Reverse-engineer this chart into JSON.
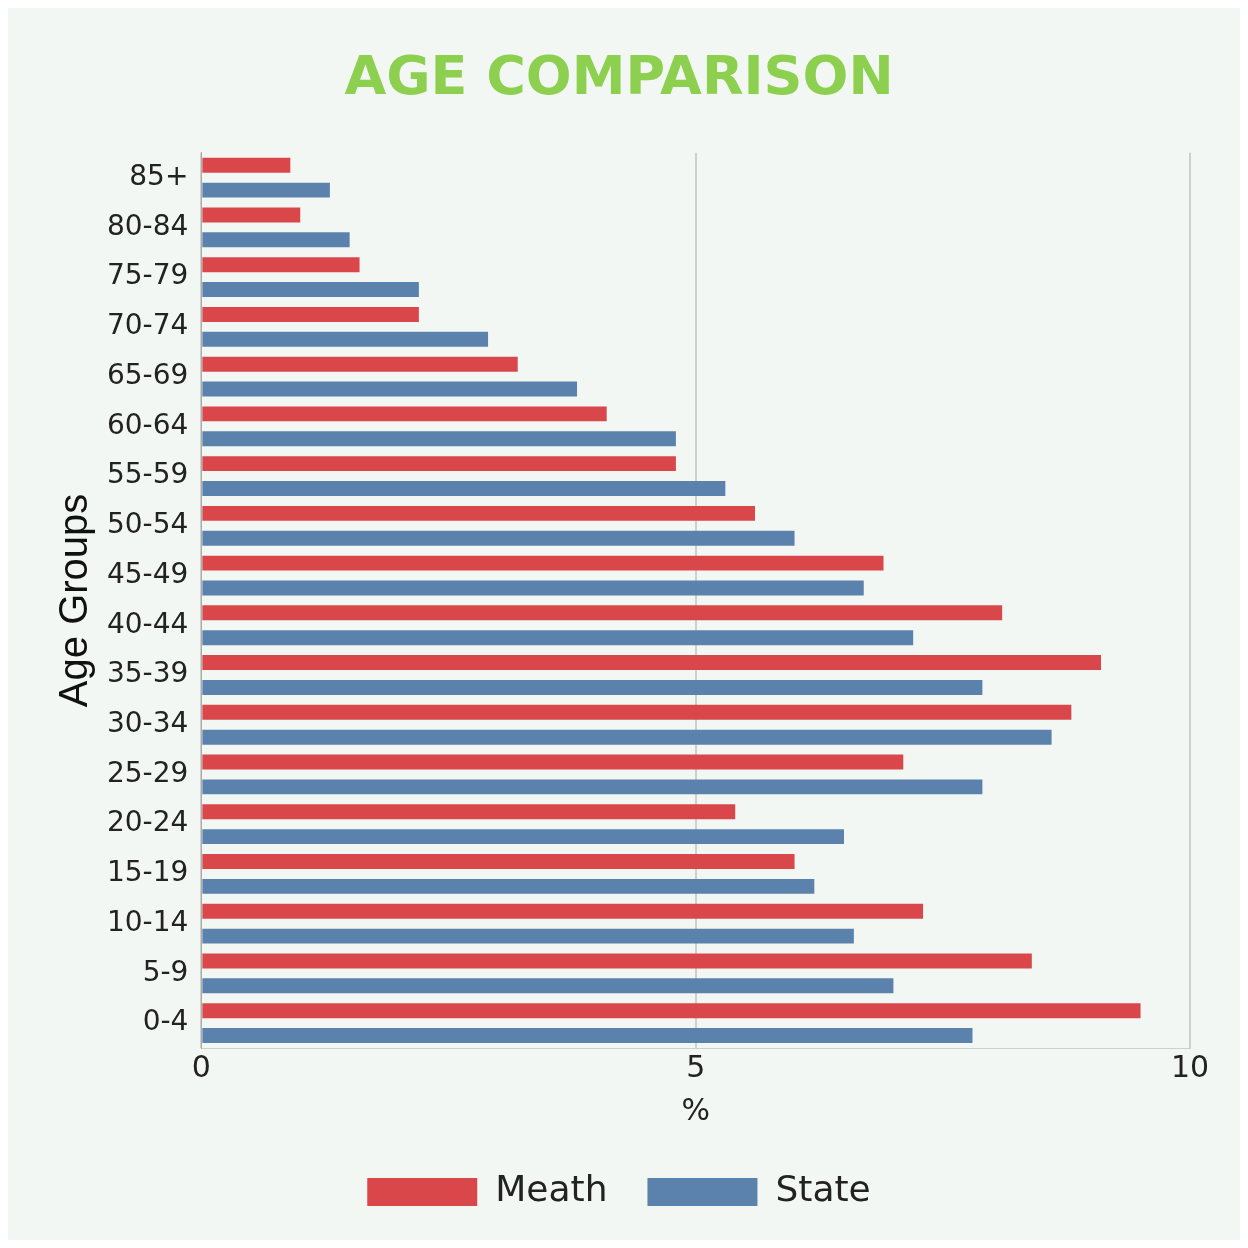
{
  "chart_data": {
    "type": "bar",
    "orientation": "horizontal",
    "title": "AGE COMPARISON",
    "xlabel": "%",
    "ylabel": "Age Groups",
    "categories": [
      "85+",
      "80-84",
      "75-79",
      "70-74",
      "65-69",
      "60-64",
      "55-59",
      "50-54",
      "45-49",
      "40-44",
      "35-39",
      "30-34",
      "25-29",
      "20-24",
      "15-19",
      "10-14",
      "5-9",
      "0-4"
    ],
    "series": [
      {
        "name": "Meath",
        "color": "#d9474b",
        "values": [
          0.9,
          1.0,
          1.6,
          2.2,
          3.2,
          4.1,
          4.8,
          5.6,
          6.9,
          8.1,
          9.1,
          8.8,
          7.1,
          5.4,
          6.0,
          7.3,
          8.4,
          9.5
        ]
      },
      {
        "name": "State",
        "color": "#5b82ad",
        "values": [
          1.3,
          1.5,
          2.2,
          2.9,
          3.8,
          4.8,
          5.3,
          6.0,
          6.7,
          7.2,
          7.9,
          8.6,
          7.9,
          6.5,
          6.2,
          6.6,
          7.0,
          7.8
        ]
      }
    ],
    "xlim": [
      0,
      10
    ],
    "xticks": [
      0,
      5,
      10
    ],
    "grid": "x",
    "legend": "bottom"
  }
}
